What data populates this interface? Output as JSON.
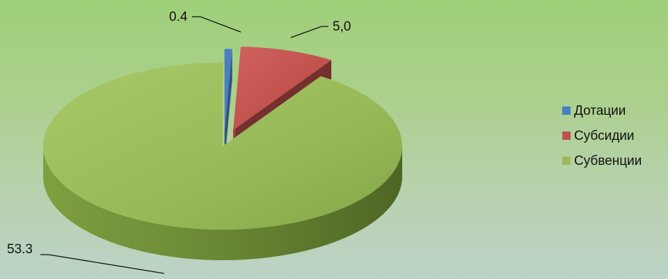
{
  "chart_data": {
    "type": "pie",
    "style": "3d-exploded",
    "categories": [
      "Дотации",
      "Субсидии",
      "Субвенции"
    ],
    "values": [
      0.4,
      5.0,
      53.3
    ],
    "data_labels": [
      "0.4",
      "5,0",
      "53.3"
    ],
    "colors": [
      "#4a7fc1",
      "#c0504d",
      "#9bbb59"
    ],
    "legend": "right",
    "title": ""
  }
}
